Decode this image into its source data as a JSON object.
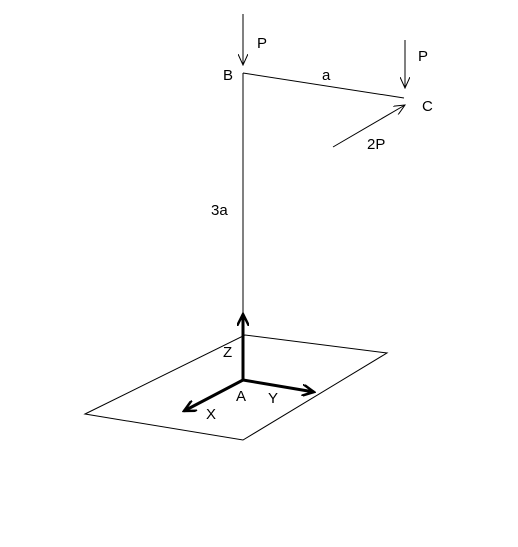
{
  "labels": {
    "point_b": "B",
    "point_c": "C",
    "point_a": "A",
    "length_bc": "a",
    "length_ab": "3a",
    "load_p_at_b": "P",
    "load_p_at_c": "P",
    "load_2p_at_c": "2P",
    "axis_x": "X",
    "axis_y": "Y",
    "axis_z": "Z"
  },
  "colors": {
    "line": "#000000",
    "background": "#ffffff"
  }
}
